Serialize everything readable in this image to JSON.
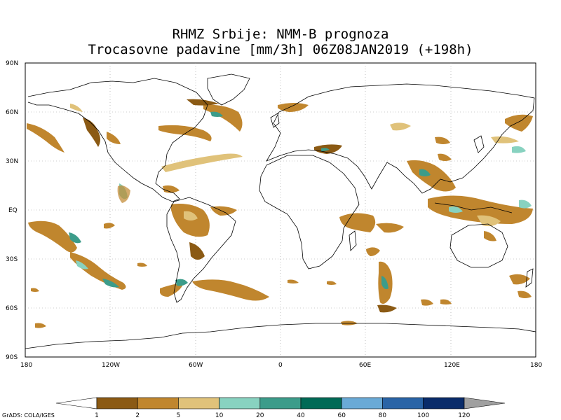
{
  "title": {
    "line1": "RHMZ Srbije: NMM-B prognoza",
    "line2": "Trocasovne padavine [mm/3h] 06Z08JAN2019 (+198h)"
  },
  "map": {
    "projection": "latlon",
    "grid": "dotted",
    "lat_labels": [
      "90N",
      "60N",
      "30N",
      "EQ",
      "30S",
      "60S",
      "90S"
    ],
    "lon_labels": [
      "180",
      "120W",
      "60W",
      "0",
      "60E",
      "120E",
      "180"
    ]
  },
  "colorbar": {
    "ticks": [
      "1",
      "2",
      "5",
      "10",
      "20",
      "40",
      "60",
      "80",
      "100",
      "120"
    ],
    "colors": [
      "#8b5a14",
      "#c0862e",
      "#e0c27a",
      "#88d2c0",
      "#3c9c8a",
      "#006a56",
      "#6aaad6",
      "#2a64a6",
      "#0a2c6a"
    ],
    "under_color": "#ffffff",
    "over_color": "#a0a0a0"
  },
  "credit": "GrADS: COLA/IGES"
}
